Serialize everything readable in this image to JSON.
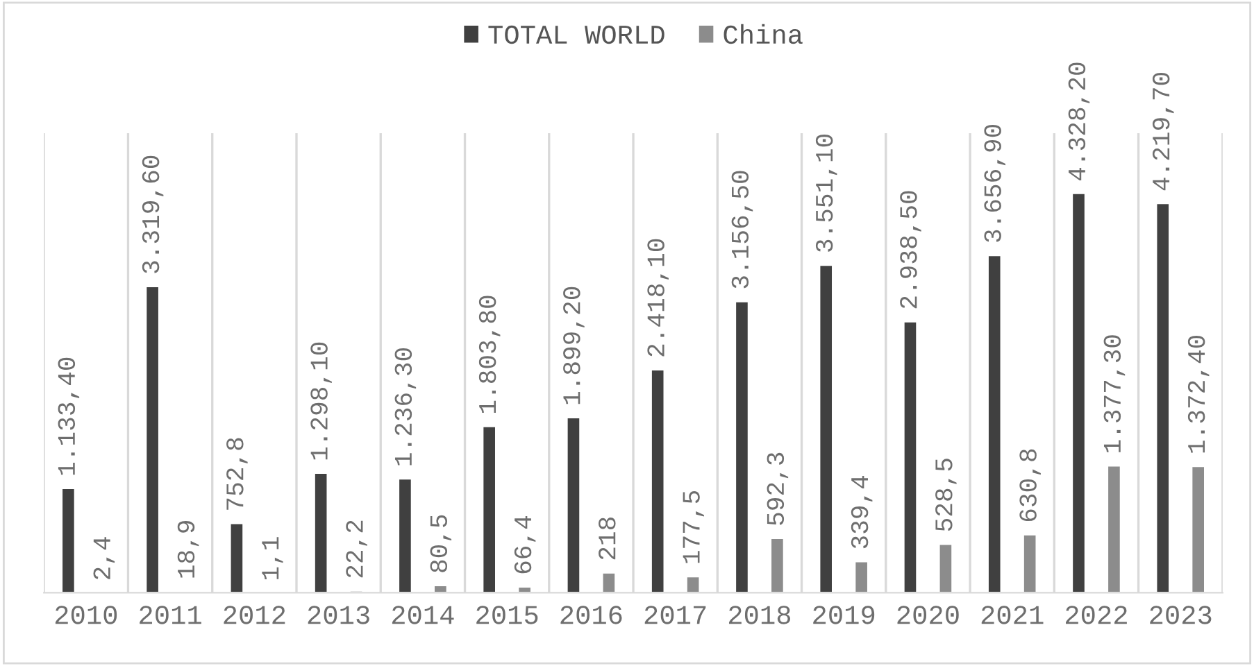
{
  "chart_data": {
    "type": "bar",
    "categories": [
      "2010",
      "2011",
      "2012",
      "2013",
      "2014",
      "2015",
      "2016",
      "2017",
      "2018",
      "2019",
      "2020",
      "2021",
      "2022",
      "2023"
    ],
    "series": [
      {
        "name": "TOTAL WORLD",
        "color": "#404040",
        "values": [
          1133.4,
          3319.6,
          752.8,
          1298.1,
          1236.3,
          1803.8,
          1899.2,
          2418.1,
          3156.5,
          3551.1,
          2938.5,
          3656.9,
          4328.2,
          4219.7
        ],
        "value_labels": [
          "1.133,40",
          "3.319,60",
          "752,8",
          "1.298,10",
          "1.236,30",
          "1.803,80",
          "1.899,20",
          "2.418,10",
          "3.156,50",
          "3.551,10",
          "2.938,50",
          "3.656,90",
          "4.328,20",
          "4.219,70"
        ]
      },
      {
        "name": "China",
        "color": "#8c8c8c",
        "values": [
          2.4,
          18.9,
          1.1,
          22.2,
          80.5,
          66.4,
          218,
          177.5,
          592.3,
          339.4,
          528.5,
          630.8,
          1377.3,
          1372.4
        ],
        "value_labels": [
          "2,4",
          "18,9",
          "1,1",
          "22,2",
          "80,5",
          "66,4",
          "218",
          "177,5",
          "592,3",
          "339,4",
          "528,5",
          "630,8",
          "1.377,30",
          "1.372,40"
        ]
      }
    ],
    "legend": "top",
    "grid": "x"
  }
}
